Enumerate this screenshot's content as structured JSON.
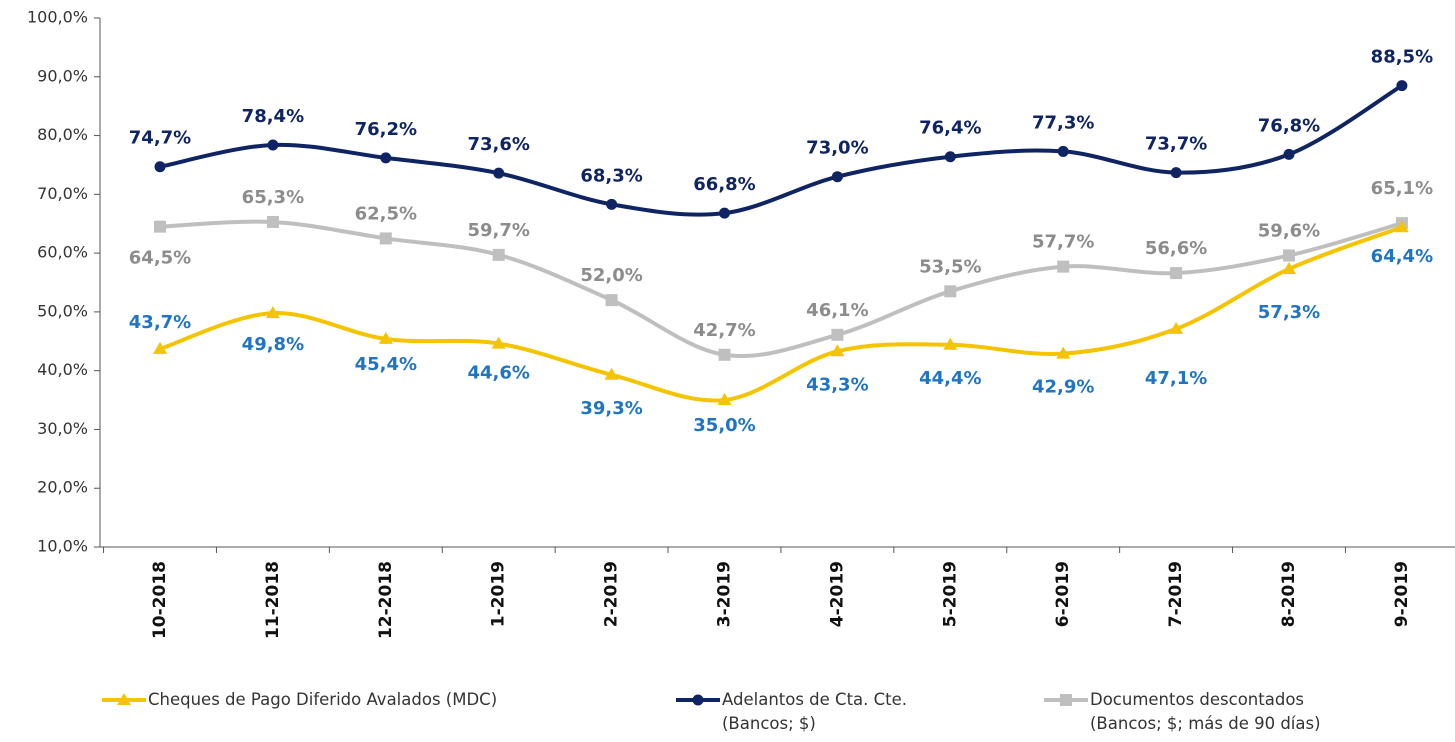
{
  "chart_data": {
    "type": "line",
    "categories": [
      "10-2018",
      "11-2018",
      "12-2018",
      "1-2019",
      "2-2019",
      "3-2019",
      "4-2019",
      "5-2019",
      "6-2019",
      "7-2019",
      "8-2019",
      "9-2019"
    ],
    "series": [
      {
        "name": "Cheques de Pago Diferido Avalados (MDC)",
        "color": "#f5c400",
        "label_color": "#1f74c4",
        "marker": "triangle",
        "values": [
          43.7,
          49.8,
          45.4,
          44.6,
          39.3,
          35.0,
          43.3,
          44.4,
          42.9,
          47.1,
          57.3,
          64.4
        ],
        "value_labels": [
          "43,7%",
          "49,8%",
          "45,4%",
          "44,6%",
          "39,3%",
          "35,0%",
          "43,3%",
          "44,4%",
          "42,9%",
          "47,1%",
          "57,3%",
          "64,4%"
        ]
      },
      {
        "name": "Adelantos de Cta. Cte.\n(Bancos; $)",
        "color": "#0f2462",
        "label_color": "#0f2462",
        "marker": "circle",
        "values": [
          74.7,
          78.4,
          76.2,
          73.6,
          68.3,
          66.8,
          73.0,
          76.4,
          77.3,
          73.7,
          76.8,
          88.5
        ],
        "value_labels": [
          "74,7%",
          "78,4%",
          "76,2%",
          "73,6%",
          "68,3%",
          "66,8%",
          "73,0%",
          "76,4%",
          "77,3%",
          "73,7%",
          "76,8%",
          "88,5%"
        ]
      },
      {
        "name": "Documentos descontados\n(Bancos; $; más de 90 días)",
        "color": "#bfbfbf",
        "label_color": "#8c8c8c",
        "marker": "square",
        "values": [
          64.5,
          65.3,
          62.5,
          59.7,
          52.0,
          42.7,
          46.1,
          53.5,
          57.7,
          56.6,
          59.6,
          65.1
        ],
        "value_labels": [
          "64,5%",
          "65,3%",
          "62,5%",
          "59,7%",
          "52,0%",
          "42,7%",
          "46,1%",
          "53,5%",
          "57,7%",
          "56,6%",
          "59,6%",
          "65,1%"
        ]
      }
    ],
    "ylim": [
      10,
      100
    ],
    "yticks": [
      {
        "value": 10,
        "label": "10,0%"
      },
      {
        "value": 20,
        "label": "20,0%"
      },
      {
        "value": 30,
        "label": "30,0%"
      },
      {
        "value": 40,
        "label": "40,0%"
      },
      {
        "value": 50,
        "label": "50,0%"
      },
      {
        "value": 60,
        "label": "60,0%"
      },
      {
        "value": 70,
        "label": "70,0%"
      },
      {
        "value": 80,
        "label": "80,0%"
      },
      {
        "value": 90,
        "label": "90,0%"
      },
      {
        "value": 100,
        "label": "100,0%"
      }
    ],
    "grid": false,
    "legend": "bottom"
  }
}
